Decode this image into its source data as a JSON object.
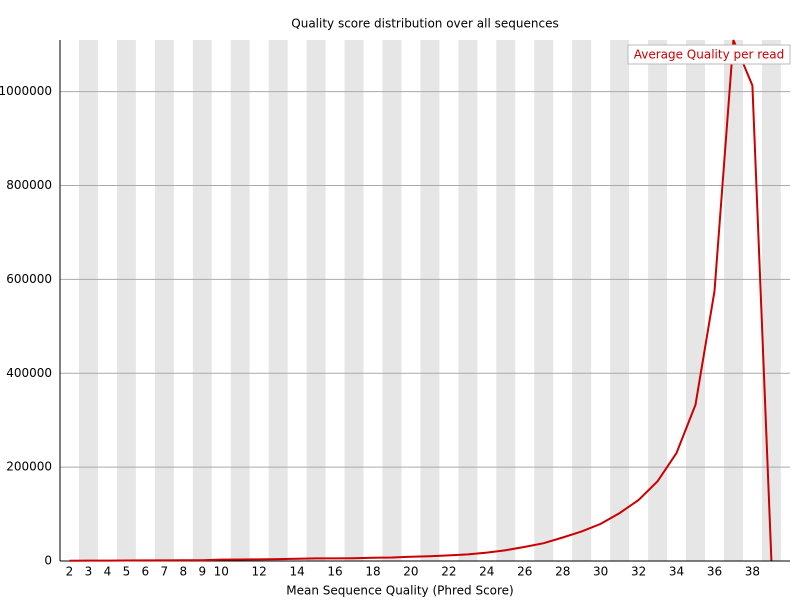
{
  "chart_data": {
    "type": "line",
    "title": "Quality score distribution over all sequences",
    "x_label": "Mean Sequence Quality (Phred Score)",
    "categories": [
      "2",
      "3",
      "4",
      "5",
      "6",
      "7",
      "8",
      "9",
      "10",
      null,
      "12",
      null,
      "14",
      null,
      "16",
      null,
      "18",
      null,
      "20",
      null,
      "22",
      null,
      "24",
      null,
      "26",
      null,
      "28",
      null,
      "30",
      null,
      "32",
      null,
      "34",
      null,
      "36",
      null,
      "38",
      null
    ],
    "series": [
      {
        "name": "Average Quality per read",
        "color": "#cc0000",
        "values": [
          500,
          800,
          900,
          1000,
          1200,
          1300,
          1500,
          1800,
          3000,
          3200,
          3500,
          4000,
          5000,
          5500,
          5500,
          6000,
          7000,
          7500,
          9000,
          10000,
          12000,
          14000,
          18000,
          23000,
          30000,
          38000,
          50000,
          63000,
          79000,
          102000,
          130000,
          170000,
          230000,
          333000,
          575000,
          1110000,
          1013000,
          1000
        ]
      }
    ],
    "ylim": [
      0,
      1110000
    ],
    "yticks": [
      0,
      200000,
      400000,
      600000,
      800000,
      1000000
    ],
    "grid": true
  }
}
